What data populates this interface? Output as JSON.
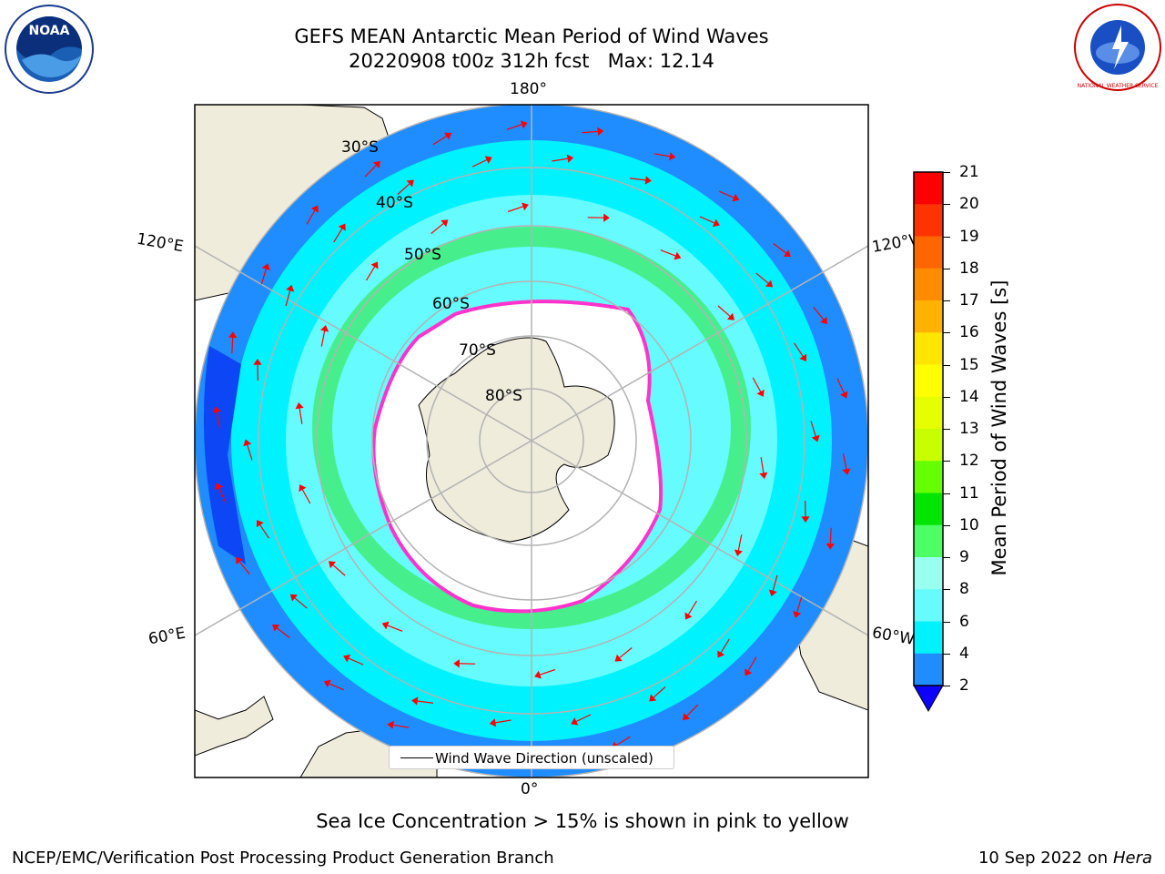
{
  "header": {
    "title": "GEFS MEAN Antarctic Mean Period of Wind Waves",
    "subtitle": "20220908 t00z 312h fcst   Max: 12.14"
  },
  "logos": {
    "noara_label": "NOAA",
    "nws_label": "NATIONAL WEATHER SERVICE"
  },
  "map": {
    "lon_labels": {
      "top": "180°",
      "bottom": "0°",
      "left_upper": "120°E",
      "left_lower": "60°E",
      "right_upper": "120°W",
      "right_lower": "60°W"
    },
    "lat_labels": [
      "30°S",
      "40°S",
      "50°S",
      "60°S",
      "70°S",
      "80°S"
    ],
    "legend_label": "Wind Wave Direction (unscaled)",
    "ocean_colors": {
      "deep": "#0d47f5",
      "mid": "#1f8cff",
      "cyan": "#00f2ff",
      "light": "#66fbff",
      "green": "#2ee62e",
      "land": "#efecdc",
      "ice_edge": "#ff33cc",
      "arrow": "#ff0000"
    }
  },
  "colorbar": {
    "label": "Mean Period of Wind Waves [s]",
    "ticks": [
      "21",
      "20",
      "19",
      "18",
      "17",
      "16",
      "15",
      "14",
      "13",
      "12",
      "11",
      "10",
      "9",
      "8",
      "6",
      "4",
      "2"
    ],
    "colors": [
      "#ff0000",
      "#ff3300",
      "#ff6600",
      "#ff8c00",
      "#ffb300",
      "#ffe600",
      "#ffff00",
      "#e6ff00",
      "#c8ff00",
      "#66ff00",
      "#00e600",
      "#4dff66",
      "#99ffee",
      "#66fbff",
      "#00f2ff",
      "#1f8cff",
      "#0d47f5"
    ]
  },
  "footer": {
    "note": "Sea Ice Concentration > 15% is shown in pink to yellow",
    "org": "NCEP/EMC/Verification Post Processing Product Generation Branch",
    "date": "10 Sep 2022 on",
    "host": "Hera"
  }
}
